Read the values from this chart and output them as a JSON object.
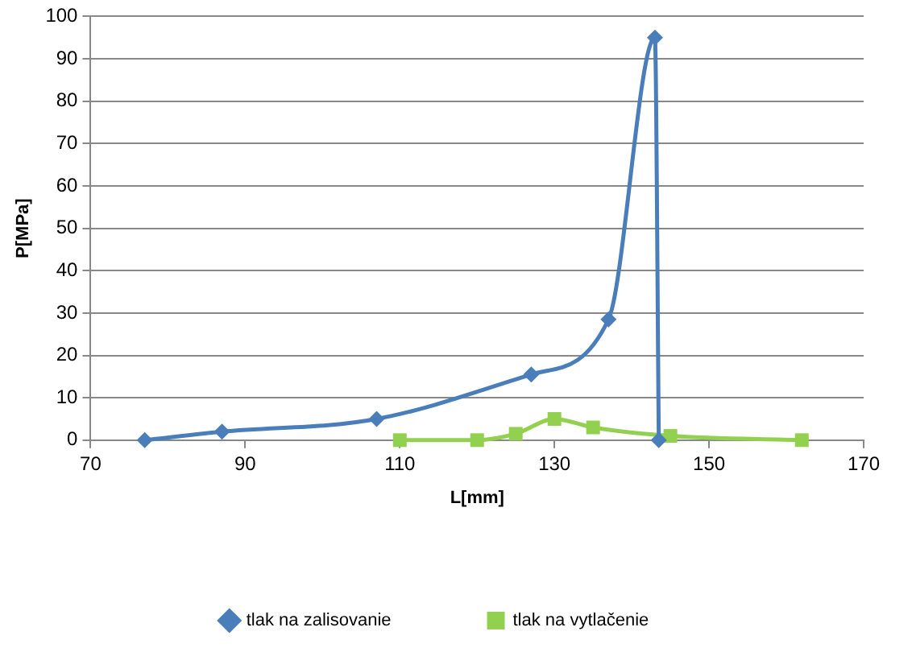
{
  "chart_data": {
    "type": "line",
    "xlabel": "L[mm]",
    "ylabel": "P[MPa]",
    "xlim": [
      70,
      170
    ],
    "xticks": [
      70,
      90,
      110,
      130,
      150,
      170
    ],
    "ylim": [
      0,
      100
    ],
    "yticks": [
      0,
      10,
      20,
      30,
      40,
      50,
      60,
      70,
      80,
      90,
      100
    ],
    "grid": "y",
    "legend": "bottom",
    "line_style": "solid",
    "series": [
      {
        "name": "tlak na zalisovanie",
        "color": "#4a7ebb",
        "marker": "diamond",
        "x": [
          77,
          87,
          107,
          127,
          137,
          143,
          143.5
        ],
        "values": [
          0,
          2,
          5,
          15.5,
          28.5,
          95,
          0
        ]
      },
      {
        "name": "tlak na vytlačenie",
        "color": "#92d050",
        "marker": "square",
        "x": [
          110,
          120,
          125,
          130,
          135,
          145,
          162
        ],
        "values": [
          0,
          0,
          1.5,
          5,
          3,
          1,
          0
        ]
      }
    ]
  }
}
